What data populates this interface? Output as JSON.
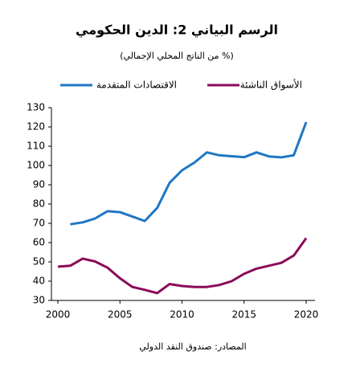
{
  "chart_data": {
    "type": "line",
    "title": "الرسم البياني 2: الدين الحكومي",
    "subtitle": "(% من الناتج المحلي الإجمالي)",
    "source": "المصادر: صندوق النقد الدولي",
    "x": [
      2000,
      2001,
      2002,
      2003,
      2004,
      2005,
      2006,
      2007,
      2008,
      2009,
      2010,
      2011,
      2012,
      2013,
      2014,
      2015,
      2016,
      2017,
      2018,
      2019,
      2020
    ],
    "series": [
      {
        "name": "الاقتصادات المتقدمة",
        "color": "#1f77c4",
        "values": [
          null,
          69.5,
          70.5,
          72.5,
          76.3,
          75.8,
          73.5,
          71.2,
          78,
          91,
          97.5,
          101.5,
          106.8,
          105.3,
          104.8,
          104.3,
          106.8,
          104.7,
          104.2,
          105.3,
          122.5
        ]
      },
      {
        "name": "الأسواق الناشئة",
        "color": "#8b0a5a",
        "values": [
          47.5,
          48,
          51.7,
          50.2,
          47,
          41.5,
          37,
          35.5,
          33.8,
          38.5,
          37.5,
          37,
          37,
          38,
          40,
          43.8,
          46.5,
          48,
          49.5,
          53.3,
          62.3
        ]
      }
    ],
    "xlim": [
      2000,
      2020
    ],
    "xticks": [
      2000,
      2005,
      2010,
      2015,
      2020
    ],
    "ylim": [
      30,
      130
    ],
    "yticks": [
      30,
      40,
      50,
      60,
      70,
      80,
      90,
      100,
      110,
      120,
      130
    ],
    "grid": false
  }
}
